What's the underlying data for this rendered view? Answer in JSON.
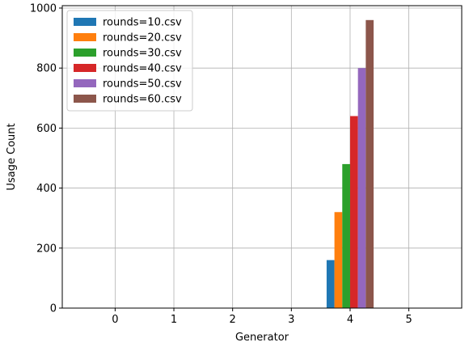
{
  "chart_data": {
    "type": "bar",
    "title": "",
    "xlabel": "Generator",
    "ylabel": "Usage Count",
    "x_ticks": [
      0,
      1,
      2,
      3,
      4,
      5
    ],
    "y_ticks": [
      0,
      200,
      400,
      600,
      800,
      1000
    ],
    "xlim": [
      -0.9,
      5.9
    ],
    "ylim": [
      0,
      1008
    ],
    "grid": true,
    "legend_position": "top-left",
    "series": [
      {
        "name": "rounds=10.csv",
        "color": "#1f77b4",
        "points": [
          {
            "x": 4,
            "y": 160
          }
        ]
      },
      {
        "name": "rounds=20.csv",
        "color": "#ff7f0e",
        "points": [
          {
            "x": 4,
            "y": 320
          }
        ]
      },
      {
        "name": "rounds=30.csv",
        "color": "#2ca02c",
        "points": [
          {
            "x": 4,
            "y": 480
          }
        ]
      },
      {
        "name": "rounds=40.csv",
        "color": "#d62728",
        "points": [
          {
            "x": 4,
            "y": 640
          }
        ]
      },
      {
        "name": "rounds=50.csv",
        "color": "#9467bd",
        "points": [
          {
            "x": 4,
            "y": 800
          }
        ]
      },
      {
        "name": "rounds=60.csv",
        "color": "#8c564b",
        "points": [
          {
            "x": 4,
            "y": 960
          }
        ]
      }
    ]
  }
}
